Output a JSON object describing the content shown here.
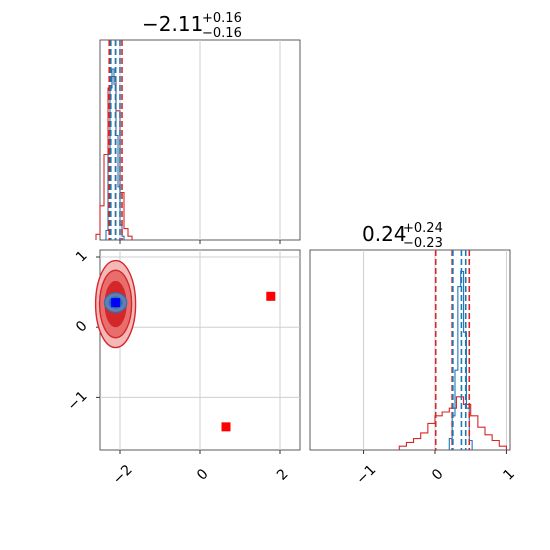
{
  "chart_data": [
    {
      "type": "histogram",
      "panel": "marginal-param-1",
      "title": {
        "value": "−2.11",
        "plus": "+0.16",
        "minus": "−0.16"
      },
      "xlim": [
        -2.5,
        2.5
      ],
      "x_ticks": [
        -2,
        0,
        2
      ],
      "grid": true,
      "series": [
        {
          "color": "#d62728",
          "bins": [
            -2.6,
            -2.5,
            -2.4,
            -2.3,
            -2.2,
            -2.1,
            -2.0,
            -1.9,
            -1.8,
            -1.7
          ],
          "counts": [
            0.03,
            0.18,
            0.45,
            0.8,
            0.86,
            0.68,
            0.25,
            0.06,
            0.02
          ]
        },
        {
          "color": "#1f77b4",
          "bins": [
            -2.35,
            -2.3,
            -2.25,
            -2.2,
            -2.15,
            -2.1,
            -2.05,
            -2.0,
            -1.95,
            -1.9
          ],
          "counts": [
            0.05,
            0.45,
            0.8,
            0.9,
            0.82,
            0.55,
            0.28,
            0.08,
            0.02
          ]
        }
      ],
      "quantiles": [
        {
          "color": "#d62728",
          "x": [
            -2.27,
            -2.11,
            -1.95
          ]
        },
        {
          "color": "#1f77b4",
          "x": [
            -2.23,
            -2.11,
            -2.0
          ]
        }
      ]
    },
    {
      "type": "contour-scatter",
      "panel": "joint",
      "xlim": [
        -2.5,
        2.5
      ],
      "ylim": [
        -1.75,
        1.1
      ],
      "x_ticks": [
        -2,
        0,
        2
      ],
      "y_ticks": [
        1,
        0,
        -1
      ],
      "grid": true,
      "red_contours": [
        {
          "cx": -2.11,
          "cy": 0.33,
          "rx": 0.5,
          "ry": 0.62,
          "fill": "#f4b8b8"
        },
        {
          "cx": -2.11,
          "cy": 0.33,
          "rx": 0.4,
          "ry": 0.48,
          "fill": "#e86e6e"
        },
        {
          "cx": -2.11,
          "cy": 0.33,
          "rx": 0.26,
          "ry": 0.32,
          "fill": "#d62728"
        }
      ],
      "blue_contours": [
        {
          "cx": -2.11,
          "cy": 0.35,
          "rx": 0.28,
          "ry": 0.14,
          "fill": "#5b86c4"
        },
        {
          "cx": -2.11,
          "cy": 0.35,
          "rx": 0.16,
          "ry": 0.08,
          "fill": "#1f5fbf"
        }
      ],
      "truth_markers": [
        {
          "x": -2.11,
          "y": 0.35,
          "color": "#0000ff"
        },
        {
          "x": 1.77,
          "y": 0.44,
          "color": "#ff0000"
        },
        {
          "x": 0.65,
          "y": -1.42,
          "color": "#ff0000"
        }
      ]
    },
    {
      "type": "histogram",
      "panel": "marginal-param-2",
      "title": {
        "value": "0.24",
        "plus": "+0.24",
        "minus": "−0.23"
      },
      "xlim": [
        -1.75,
        1.05
      ],
      "x_ticks": [
        -1,
        0,
        1
      ],
      "grid": true,
      "series": [
        {
          "color": "#d62728",
          "bins": [
            -0.5,
            -0.4,
            -0.3,
            -0.2,
            -0.1,
            0.0,
            0.1,
            0.2,
            0.3,
            0.4,
            0.5,
            0.6,
            0.7,
            0.8,
            0.9,
            1.0
          ],
          "counts": [
            0.02,
            0.04,
            0.06,
            0.09,
            0.14,
            0.18,
            0.2,
            0.22,
            0.28,
            0.24,
            0.18,
            0.12,
            0.08,
            0.05,
            0.02
          ]
        },
        {
          "color": "#1f77b4",
          "bins": [
            0.2,
            0.24,
            0.28,
            0.32,
            0.36,
            0.4,
            0.44,
            0.48,
            0.52
          ],
          "counts": [
            0.06,
            0.18,
            0.42,
            0.86,
            0.94,
            0.62,
            0.22,
            0.05
          ]
        }
      ],
      "quantiles": [
        {
          "color": "#d62728",
          "x": [
            0.01,
            0.24,
            0.48
          ]
        },
        {
          "color": "#1f77b4",
          "x": [
            0.25,
            0.37,
            0.43
          ]
        }
      ]
    }
  ]
}
